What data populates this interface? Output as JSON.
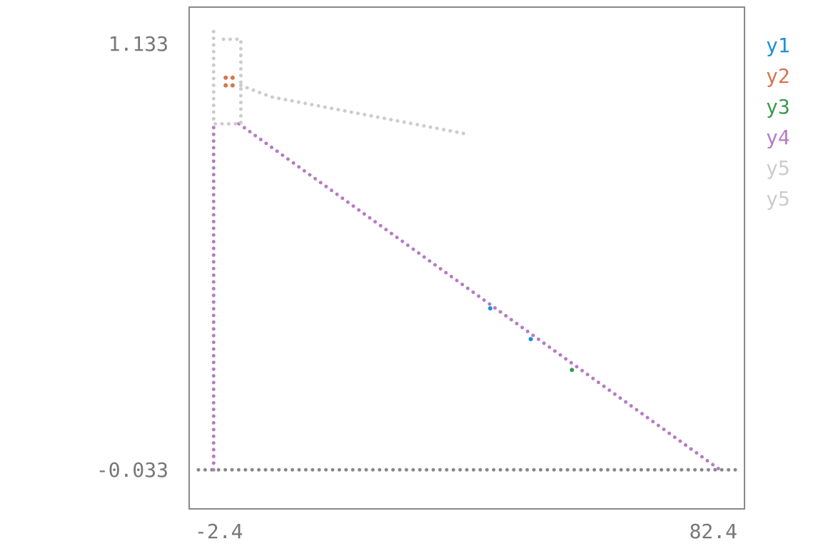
{
  "chart_data": {
    "type": "scatter",
    "xlim": [
      -2.4,
      82.4
    ],
    "ylim": [
      -0.033,
      1.133
    ],
    "xticks": [
      -2.4,
      82.4
    ],
    "yticks": [
      -0.033,
      1.133
    ],
    "series": [
      {
        "name": "y1",
        "color": "#1a8fd8",
        "mode": "points",
        "x": [
          43.7,
          50.1
        ],
        "y": [
          0.42,
          0.34
        ]
      },
      {
        "name": "y2",
        "color": "#d8734c",
        "mode": "points",
        "x": [
          1.9,
          3.0,
          1.9,
          3.0
        ],
        "y": [
          1.02,
          1.02,
          1.0,
          1.0
        ]
      },
      {
        "name": "y3",
        "color": "#3a9a4f",
        "mode": "points",
        "x": [
          56.6
        ],
        "y": [
          0.26
        ]
      },
      {
        "name": "y4",
        "color": "#b57bc4",
        "mode": "line",
        "x": [
          0,
          0,
          null,
          4,
          80
        ],
        "y": [
          0,
          0.9,
          null,
          0.9,
          0
        ]
      },
      {
        "name": "y5",
        "color": "#cccccc",
        "mode": "line",
        "x": [
          0,
          0,
          4.3,
          4.3,
          0.9
        ],
        "y": [
          1.14,
          0.9,
          0.9,
          1.12,
          1.12
        ]
      },
      {
        "name": "y5",
        "color": "#cccccc",
        "mode": "line",
        "x": [
          4.3,
          9.1,
          39.5
        ],
        "y": [
          1.0,
          0.97,
          0.875
        ]
      }
    ]
  }
}
